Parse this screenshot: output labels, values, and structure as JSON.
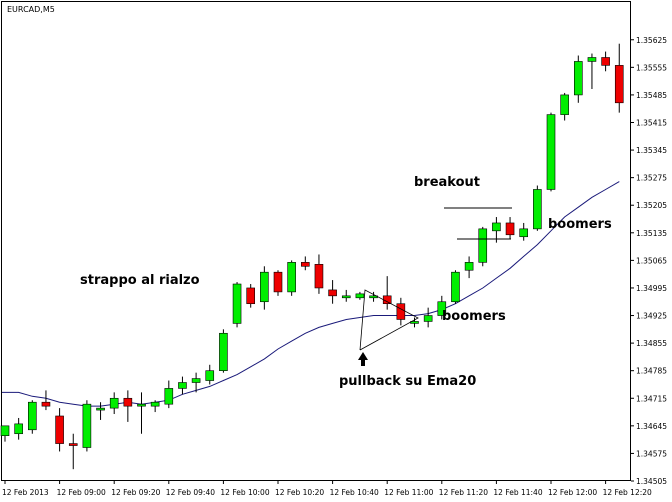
{
  "symbol_label": "EURCAD,M5",
  "colors": {
    "background": "#ffffff",
    "frame": "#000000",
    "bull": "#00ee00",
    "bear": "#ee0000",
    "wick": "#000000",
    "ema": "#1a1a7a"
  },
  "chart_data": {
    "type": "candlestick",
    "title": "EURCAD,M5",
    "ylim": [
      1.34505,
      1.35665
    ],
    "y_ticks": [
      "1.35625",
      "1.35555",
      "1.35485",
      "1.35415",
      "1.35345",
      "1.35275",
      "1.35205",
      "1.35135",
      "1.35065",
      "1.34995",
      "1.34925",
      "1.34855",
      "1.34785",
      "1.34715",
      "1.34645",
      "1.34575",
      "1.34505"
    ],
    "x_ticks": [
      "12 Feb 2013",
      "12 Feb 09:00",
      "12 Feb 09:20",
      "12 Feb 09:40",
      "12 Feb 10:00",
      "12 Feb 10:20",
      "12 Feb 10:40",
      "12 Feb 11:00",
      "12 Feb 11:20",
      "12 Feb 11:40",
      "12 Feb 12:00",
      "12 Feb 12:20"
    ],
    "candles": [
      {
        "o": 1.3462,
        "h": 1.34645,
        "l": 1.34605,
        "c": 1.34645
      },
      {
        "o": 1.34625,
        "h": 1.34665,
        "l": 1.3461,
        "c": 1.3465
      },
      {
        "o": 1.34635,
        "h": 1.3471,
        "l": 1.34625,
        "c": 1.34705
      },
      {
        "o": 1.34705,
        "h": 1.34735,
        "l": 1.34685,
        "c": 1.34695
      },
      {
        "o": 1.3467,
        "h": 1.3469,
        "l": 1.3458,
        "c": 1.346
      },
      {
        "o": 1.346,
        "h": 1.34625,
        "l": 1.34535,
        "c": 1.34595
      },
      {
        "o": 1.3459,
        "h": 1.3471,
        "l": 1.3458,
        "c": 1.347
      },
      {
        "o": 1.34685,
        "h": 1.34705,
        "l": 1.3466,
        "c": 1.3469
      },
      {
        "o": 1.3469,
        "h": 1.3473,
        "l": 1.34675,
        "c": 1.34715
      },
      {
        "o": 1.34715,
        "h": 1.34735,
        "l": 1.34655,
        "c": 1.34695
      },
      {
        "o": 1.34695,
        "h": 1.3473,
        "l": 1.34625,
        "c": 1.347
      },
      {
        "o": 1.34695,
        "h": 1.3471,
        "l": 1.3468,
        "c": 1.34705
      },
      {
        "o": 1.347,
        "h": 1.3476,
        "l": 1.3469,
        "c": 1.3474
      },
      {
        "o": 1.3474,
        "h": 1.3477,
        "l": 1.34725,
        "c": 1.34755
      },
      {
        "o": 1.34755,
        "h": 1.3478,
        "l": 1.3473,
        "c": 1.34765
      },
      {
        "o": 1.3476,
        "h": 1.348,
        "l": 1.3475,
        "c": 1.34785
      },
      {
        "o": 1.34785,
        "h": 1.3489,
        "l": 1.3478,
        "c": 1.3488
      },
      {
        "o": 1.34905,
        "h": 1.3501,
        "l": 1.34895,
        "c": 1.35005
      },
      {
        "o": 1.34995,
        "h": 1.35005,
        "l": 1.34945,
        "c": 1.34955
      },
      {
        "o": 1.3496,
        "h": 1.3505,
        "l": 1.3494,
        "c": 1.35035
      },
      {
        "o": 1.35035,
        "h": 1.3504,
        "l": 1.34975,
        "c": 1.34985
      },
      {
        "o": 1.34985,
        "h": 1.35065,
        "l": 1.34975,
        "c": 1.3506
      },
      {
        "o": 1.3506,
        "h": 1.35075,
        "l": 1.3504,
        "c": 1.3505
      },
      {
        "o": 1.35055,
        "h": 1.3508,
        "l": 1.3498,
        "c": 1.34995
      },
      {
        "o": 1.3499,
        "h": 1.35015,
        "l": 1.34955,
        "c": 1.34975
      },
      {
        "o": 1.3497,
        "h": 1.3499,
        "l": 1.3496,
        "c": 1.34975
      },
      {
        "o": 1.3497,
        "h": 1.34985,
        "l": 1.34965,
        "c": 1.3498
      },
      {
        "o": 1.3497,
        "h": 1.34985,
        "l": 1.3496,
        "c": 1.34975
      },
      {
        "o": 1.34975,
        "h": 1.35025,
        "l": 1.3494,
        "c": 1.34955
      },
      {
        "o": 1.34955,
        "h": 1.3497,
        "l": 1.349,
        "c": 1.34915
      },
      {
        "o": 1.34905,
        "h": 1.3492,
        "l": 1.34895,
        "c": 1.3491
      },
      {
        "o": 1.3491,
        "h": 1.34945,
        "l": 1.34895,
        "c": 1.34925
      },
      {
        "o": 1.34925,
        "h": 1.34975,
        "l": 1.34915,
        "c": 1.3496
      },
      {
        "o": 1.3496,
        "h": 1.3504,
        "l": 1.34955,
        "c": 1.35035
      },
      {
        "o": 1.3504,
        "h": 1.35075,
        "l": 1.3502,
        "c": 1.3506
      },
      {
        "o": 1.3506,
        "h": 1.3515,
        "l": 1.3505,
        "c": 1.35145
      },
      {
        "o": 1.3514,
        "h": 1.35175,
        "l": 1.3511,
        "c": 1.3516
      },
      {
        "o": 1.3516,
        "h": 1.35175,
        "l": 1.3512,
        "c": 1.3513
      },
      {
        "o": 1.35125,
        "h": 1.3516,
        "l": 1.35115,
        "c": 1.35145
      },
      {
        "o": 1.35145,
        "h": 1.35255,
        "l": 1.3514,
        "c": 1.35245
      },
      {
        "o": 1.35245,
        "h": 1.3544,
        "l": 1.3524,
        "c": 1.35435
      },
      {
        "o": 1.35435,
        "h": 1.3549,
        "l": 1.3542,
        "c": 1.35485
      },
      {
        "o": 1.35485,
        "h": 1.35585,
        "l": 1.35465,
        "c": 1.3557
      },
      {
        "o": 1.3557,
        "h": 1.3559,
        "l": 1.355,
        "c": 1.3558
      },
      {
        "o": 1.3558,
        "h": 1.35595,
        "l": 1.35545,
        "c": 1.3556
      },
      {
        "o": 1.3556,
        "h": 1.35615,
        "l": 1.3544,
        "c": 1.35465
      }
    ],
    "ema": {
      "name": "Ema20",
      "values": [
        1.3473,
        1.3473,
        1.3472,
        1.34715,
        1.34705,
        1.347,
        1.34695,
        1.34695,
        1.347,
        1.34705,
        1.347,
        1.34705,
        1.3471,
        1.34725,
        1.34735,
        1.34745,
        1.3476,
        1.34775,
        1.34795,
        1.34815,
        1.3484,
        1.3486,
        1.3488,
        1.34895,
        1.34905,
        1.34915,
        1.3492,
        1.34925,
        1.34925,
        1.34925,
        1.34925,
        1.3493,
        1.3494,
        1.34955,
        1.34975,
        1.34995,
        1.3502,
        1.35045,
        1.35075,
        1.35105,
        1.3514,
        1.35175,
        1.352,
        1.35225,
        1.35245,
        1.35265
      ]
    },
    "annotations": [
      {
        "id": "strappo",
        "text": "strappo al rialzo"
      },
      {
        "id": "pullback",
        "text": "pullback su Ema20"
      },
      {
        "id": "boomers1",
        "text": "boomers"
      },
      {
        "id": "breakout",
        "text": "breakout"
      },
      {
        "id": "boomers2",
        "text": "boomers"
      }
    ]
  }
}
